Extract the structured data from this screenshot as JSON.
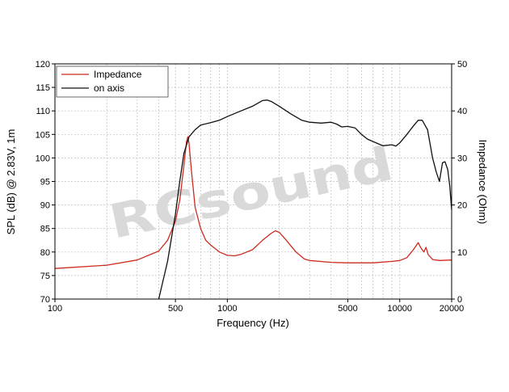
{
  "chart_data": {
    "type": "line",
    "xscale": "log",
    "xlim": [
      100,
      20000
    ],
    "xlabel": "Frequency (Hz)",
    "ylabel_left": "SPL (dB) @ 2.83V, 1m",
    "ylabel_right": "Impedance (Ohm)",
    "ylim_left": [
      70,
      120
    ],
    "ylim_right": [
      0,
      50
    ],
    "xticks": [
      100,
      500,
      1000,
      5000,
      10000,
      20000
    ],
    "xtick_labels": [
      "100",
      "500",
      "1000",
      "5000",
      "10000",
      "20000"
    ],
    "yticks_left": [
      70,
      75,
      80,
      85,
      90,
      95,
      100,
      105,
      110,
      115,
      120
    ],
    "yticks_right": [
      0,
      10,
      20,
      30,
      40,
      50
    ],
    "grid": true,
    "legend_position": "top-left",
    "watermark": "RCsound",
    "series": [
      {
        "name": "Impedance",
        "axis": "right",
        "color": "#cc2b1e",
        "points": [
          [
            100,
            6.5
          ],
          [
            200,
            7.2
          ],
          [
            300,
            8.3
          ],
          [
            400,
            10.2
          ],
          [
            450,
            12.5
          ],
          [
            500,
            16.5
          ],
          [
            530,
            21
          ],
          [
            560,
            28.5
          ],
          [
            580,
            33.5
          ],
          [
            590,
            34.5
          ],
          [
            600,
            33
          ],
          [
            620,
            27
          ],
          [
            650,
            19.5
          ],
          [
            700,
            15
          ],
          [
            750,
            12.5
          ],
          [
            800,
            11.5
          ],
          [
            900,
            10
          ],
          [
            1000,
            9.3
          ],
          [
            1100,
            9.2
          ],
          [
            1200,
            9.5
          ],
          [
            1400,
            10.5
          ],
          [
            1600,
            12.5
          ],
          [
            1800,
            14
          ],
          [
            1900,
            14.5
          ],
          [
            2000,
            14.2
          ],
          [
            2200,
            12.5
          ],
          [
            2500,
            10
          ],
          [
            2800,
            8.5
          ],
          [
            3000,
            8.2
          ],
          [
            4000,
            7.8
          ],
          [
            5000,
            7.7
          ],
          [
            7000,
            7.7
          ],
          [
            9000,
            8
          ],
          [
            10000,
            8.2
          ],
          [
            11000,
            8.8
          ],
          [
            12000,
            10.5
          ],
          [
            12800,
            12
          ],
          [
            13200,
            11
          ],
          [
            13800,
            10
          ],
          [
            14200,
            11
          ],
          [
            14600,
            9.5
          ],
          [
            15500,
            8.4
          ],
          [
            17000,
            8.2
          ],
          [
            20000,
            8.3
          ]
        ]
      },
      {
        "name": "on axis",
        "axis": "left",
        "color": "#111111",
        "points": [
          [
            400,
            70
          ],
          [
            450,
            78
          ],
          [
            500,
            88
          ],
          [
            530,
            95
          ],
          [
            560,
            101
          ],
          [
            600,
            104.5
          ],
          [
            650,
            106
          ],
          [
            700,
            107
          ],
          [
            800,
            107.5
          ],
          [
            900,
            108
          ],
          [
            1000,
            108.8
          ],
          [
            1200,
            110
          ],
          [
            1400,
            111
          ],
          [
            1600,
            112.2
          ],
          [
            1700,
            112.3
          ],
          [
            1800,
            112
          ],
          [
            2000,
            111
          ],
          [
            2300,
            109.5
          ],
          [
            2700,
            108
          ],
          [
            3000,
            107.6
          ],
          [
            3500,
            107.4
          ],
          [
            4000,
            107.6
          ],
          [
            4300,
            107.2
          ],
          [
            4600,
            106.6
          ],
          [
            5000,
            106.7
          ],
          [
            5500,
            106.4
          ],
          [
            6000,
            105
          ],
          [
            6500,
            104
          ],
          [
            7500,
            103
          ],
          [
            8000,
            102.6
          ],
          [
            9000,
            102.8
          ],
          [
            9500,
            102.5
          ],
          [
            10000,
            103.2
          ],
          [
            11000,
            105
          ],
          [
            12000,
            106.8
          ],
          [
            12800,
            108
          ],
          [
            13500,
            108
          ],
          [
            14500,
            106
          ],
          [
            15500,
            100
          ],
          [
            16300,
            97
          ],
          [
            17000,
            95
          ],
          [
            17700,
            99
          ],
          [
            18300,
            99.2
          ],
          [
            19000,
            97.5
          ],
          [
            19500,
            94
          ],
          [
            20000,
            89
          ]
        ]
      }
    ]
  }
}
